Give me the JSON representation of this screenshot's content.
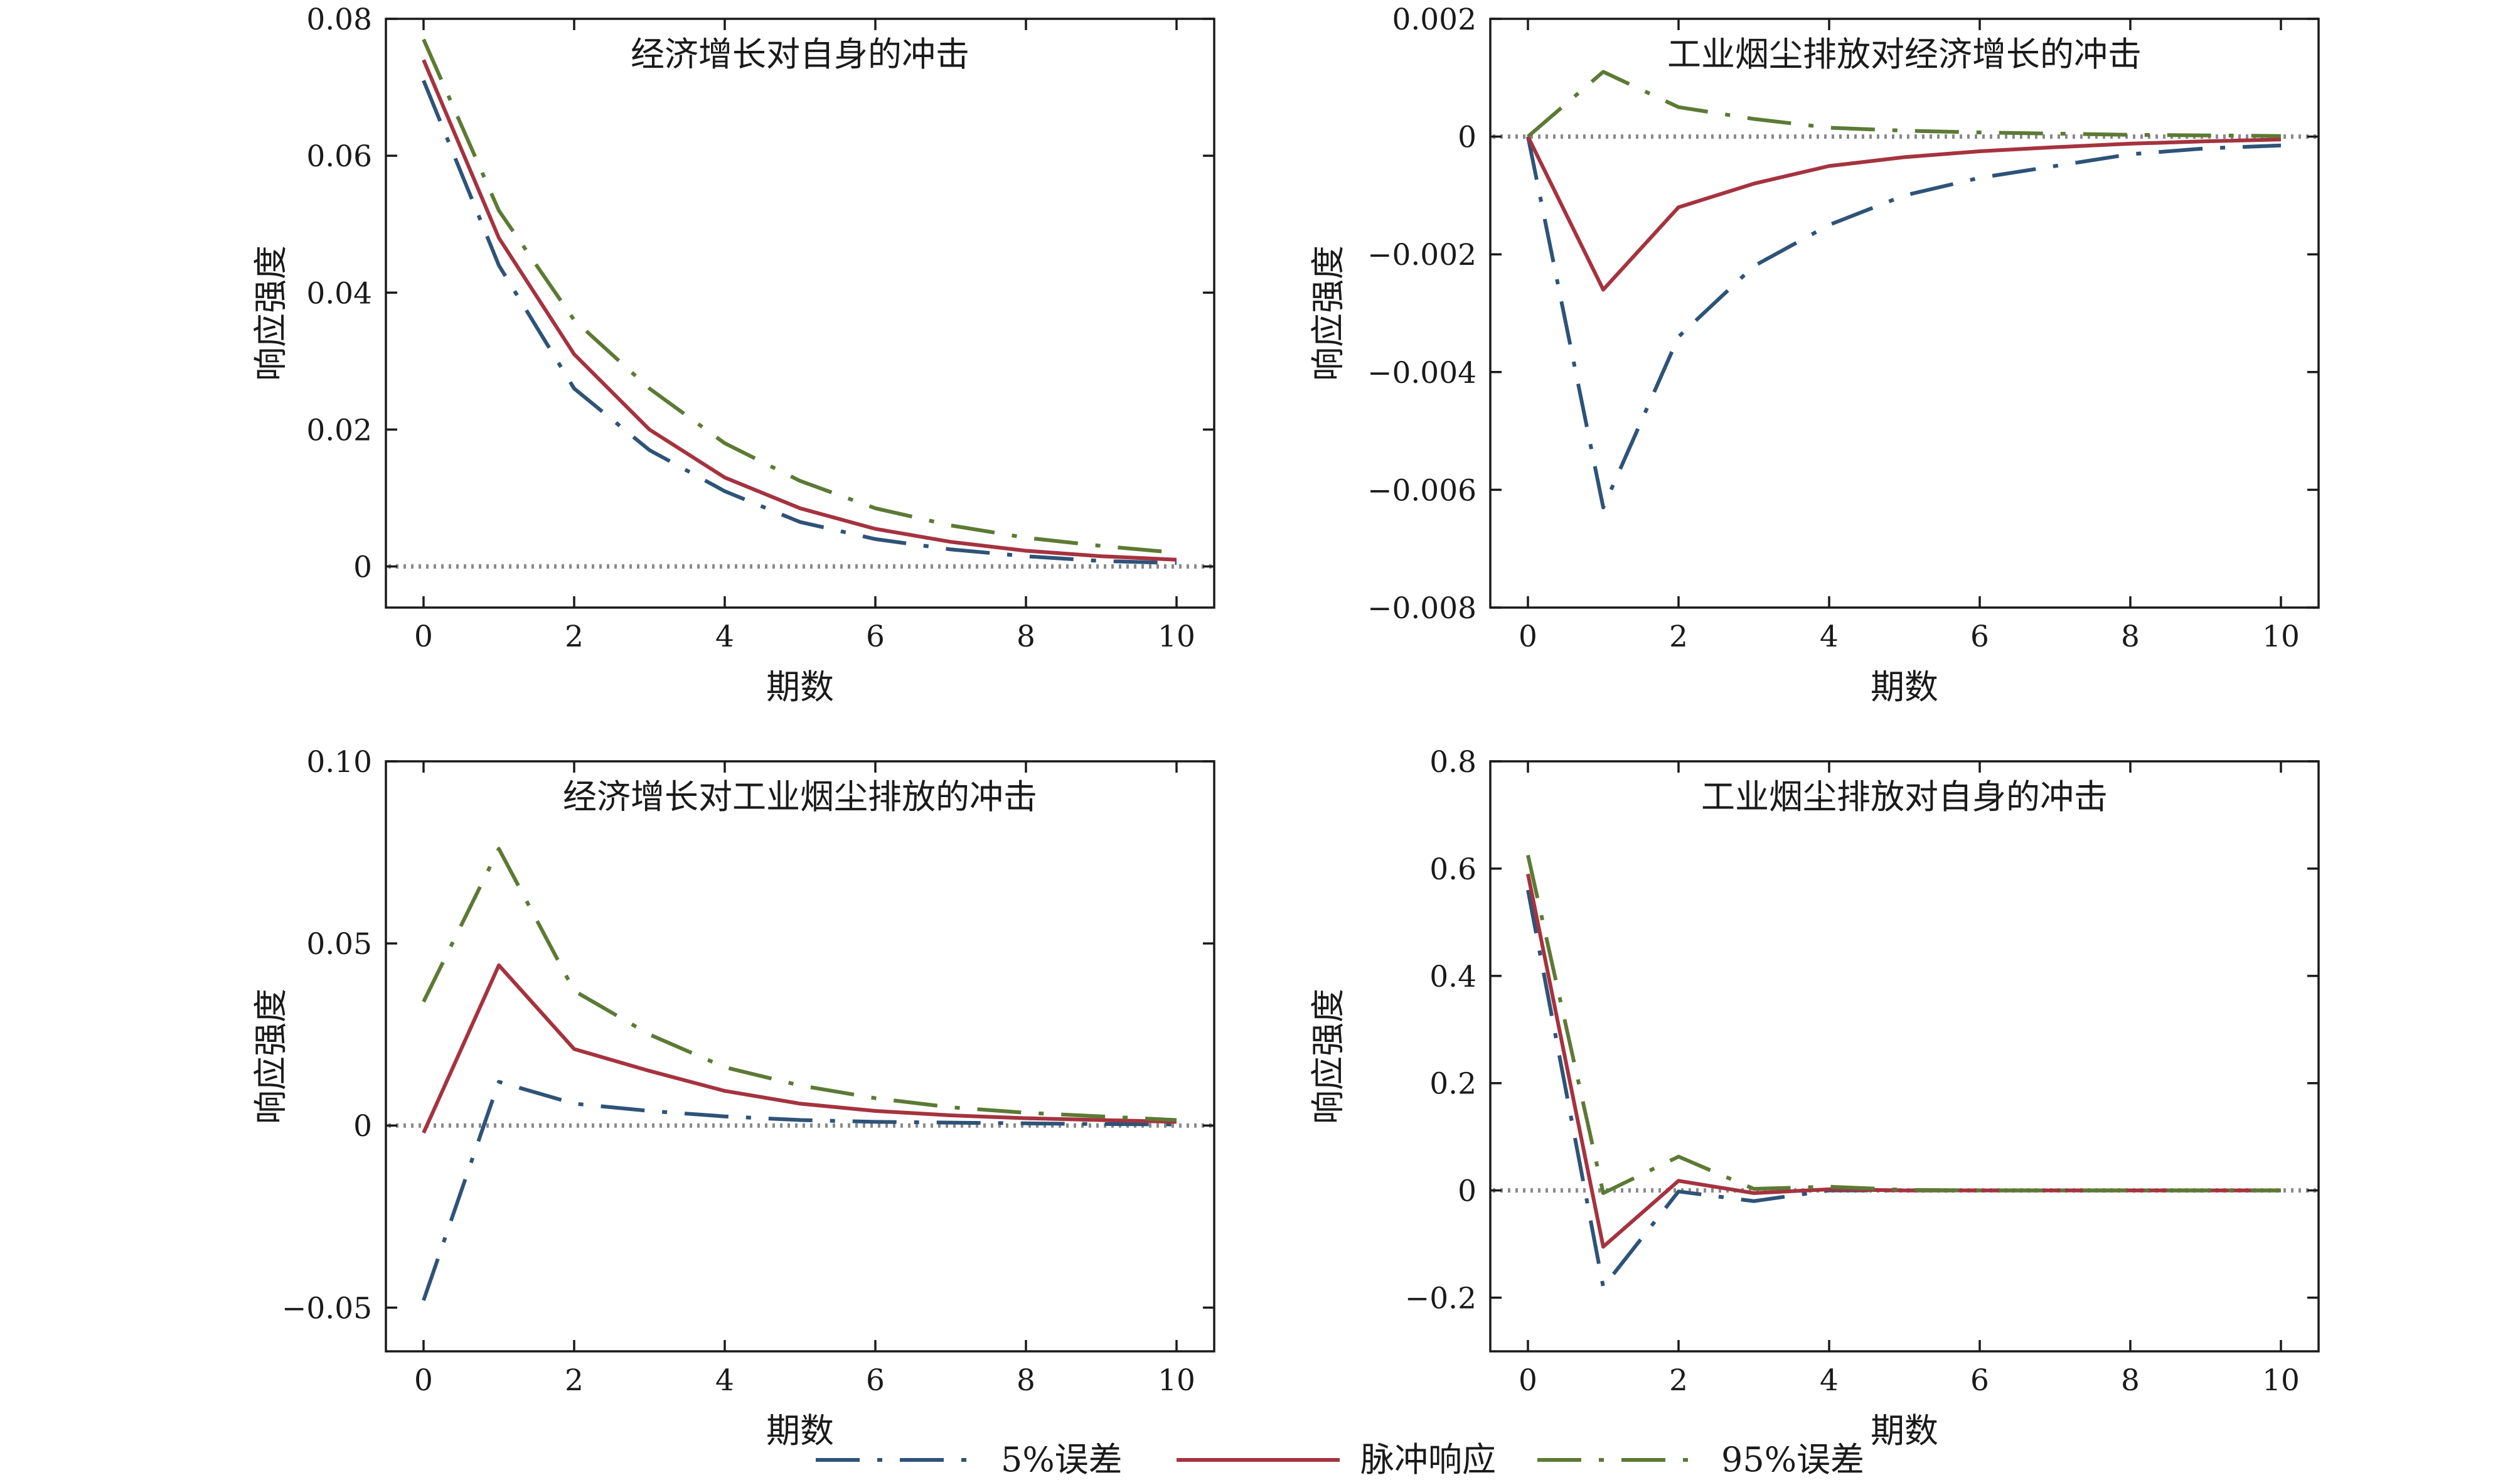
{
  "colors": {
    "p5": "#2e5378",
    "impulse": "#a5333f",
    "p95": "#5c7a34",
    "zero_line": "#8a8a8a",
    "axis": "#1a1a1a"
  },
  "series_styles": [
    {
      "key": "p5",
      "color": "#2e5378",
      "dash": "70 28 8 28"
    },
    {
      "key": "impulse",
      "color": "#a5333f",
      "dash": ""
    },
    {
      "key": "p95",
      "color": "#5c7a34",
      "dash": "70 28 8 28"
    }
  ],
  "legend": {
    "p5": "5%误差",
    "impulse": "脉冲响应",
    "p95": "95%误差"
  },
  "chart_data": [
    {
      "type": "line",
      "title": "经济增长对自身的冲击",
      "xlabel": "期数",
      "ylabel": "响应强度",
      "xlim": [
        -0.5,
        10.5
      ],
      "ylim": [
        -0.006,
        0.08
      ],
      "xticks": [
        0,
        2,
        4,
        6,
        8,
        10
      ],
      "xtick_labels": [
        "0",
        "2",
        "4",
        "6",
        "8",
        "10"
      ],
      "yticks": [
        0,
        0.02,
        0.04,
        0.06,
        0.08
      ],
      "ytick_labels": [
        "0",
        "0.02",
        "0.04",
        "0.06",
        "0.08"
      ],
      "zero_line": 0,
      "x": [
        0,
        1,
        2,
        3,
        4,
        5,
        6,
        7,
        8,
        9,
        10
      ],
      "series": [
        {
          "key": "p5",
          "name": "5%误差",
          "values": [
            0.071,
            0.044,
            0.026,
            0.017,
            0.011,
            0.0065,
            0.004,
            0.0025,
            0.0015,
            0.0008,
            0.0005
          ]
        },
        {
          "key": "impulse",
          "name": "脉冲响应",
          "values": [
            0.074,
            0.048,
            0.031,
            0.02,
            0.013,
            0.0085,
            0.0055,
            0.0036,
            0.0023,
            0.0015,
            0.001
          ]
        },
        {
          "key": "p95",
          "name": "95%误差",
          "values": [
            0.077,
            0.052,
            0.036,
            0.026,
            0.018,
            0.0125,
            0.0085,
            0.006,
            0.0042,
            0.003,
            0.002
          ]
        }
      ]
    },
    {
      "type": "line",
      "title": "工业烟尘排放对经济增长的冲击",
      "xlabel": "期数",
      "ylabel": "响应强度",
      "xlim": [
        -0.5,
        10.5
      ],
      "ylim": [
        -0.008,
        0.002
      ],
      "xticks": [
        0,
        2,
        4,
        6,
        8,
        10
      ],
      "xtick_labels": [
        "0",
        "2",
        "4",
        "6",
        "8",
        "10"
      ],
      "yticks": [
        -0.008,
        -0.006,
        -0.004,
        -0.002,
        0,
        0.002
      ],
      "ytick_labels": [
        "−0.008",
        "−0.006",
        "−0.004",
        "−0.002",
        "0",
        "0.002"
      ],
      "zero_line": 0,
      "x": [
        0,
        1,
        2,
        3,
        4,
        5,
        6,
        7,
        8,
        9,
        10
      ],
      "series": [
        {
          "key": "p5",
          "name": "5%误差",
          "values": [
            0,
            -0.0063,
            -0.0034,
            -0.0022,
            -0.0015,
            -0.001,
            -0.0007,
            -0.0005,
            -0.0003,
            -0.0002,
            -0.00015
          ]
        },
        {
          "key": "impulse",
          "name": "脉冲响应",
          "values": [
            0,
            -0.0026,
            -0.0012,
            -0.0008,
            -0.0005,
            -0.00035,
            -0.00025,
            -0.00018,
            -0.00012,
            -8e-05,
            -5e-05
          ]
        },
        {
          "key": "p95",
          "name": "95%误差",
          "values": [
            0,
            0.0011,
            0.0005,
            0.0003,
            0.00015,
            0.0001,
            7e-05,
            5e-05,
            3e-05,
            2e-05,
            1e-05
          ]
        }
      ]
    },
    {
      "type": "line",
      "title": "经济增长对工业烟尘排放的冲击",
      "xlabel": "期数",
      "ylabel": "响应强度",
      "xlim": [
        -0.5,
        10.5
      ],
      "ylim": [
        -0.062,
        0.1
      ],
      "xticks": [
        0,
        2,
        4,
        6,
        8,
        10
      ],
      "xtick_labels": [
        "0",
        "2",
        "4",
        "6",
        "8",
        "10"
      ],
      "yticks": [
        -0.05,
        0,
        0.05,
        0.1
      ],
      "ytick_labels": [
        "−0.05",
        "0",
        "0.05",
        "0.10"
      ],
      "zero_line": 0,
      "x": [
        0,
        1,
        2,
        3,
        4,
        5,
        6,
        7,
        8,
        9,
        10
      ],
      "series": [
        {
          "key": "p5",
          "name": "5%误差",
          "values": [
            -0.048,
            0.012,
            0.006,
            0.004,
            0.0025,
            0.0015,
            0.001,
            0.0008,
            0.0006,
            0.0004,
            0.0003
          ]
        },
        {
          "key": "impulse",
          "name": "脉冲响应",
          "values": [
            -0.002,
            0.044,
            0.021,
            0.015,
            0.0095,
            0.006,
            0.004,
            0.0028,
            0.002,
            0.0015,
            0.001
          ]
        },
        {
          "key": "p95",
          "name": "95%误差",
          "values": [
            0.034,
            0.076,
            0.037,
            0.025,
            0.016,
            0.011,
            0.0075,
            0.005,
            0.0035,
            0.0025,
            0.0015
          ]
        }
      ]
    },
    {
      "type": "line",
      "title": "工业烟尘排放对自身的冲击",
      "xlabel": "期数",
      "ylabel": "响应强度",
      "xlim": [
        -0.5,
        10.5
      ],
      "ylim": [
        -0.3,
        0.8
      ],
      "xticks": [
        0,
        2,
        4,
        6,
        8,
        10
      ],
      "xtick_labels": [
        "0",
        "2",
        "4",
        "6",
        "8",
        "10"
      ],
      "yticks": [
        -0.2,
        0,
        0.2,
        0.4,
        0.6,
        0.8
      ],
      "ytick_labels": [
        "−0.2",
        "0",
        "0.2",
        "0.4",
        "0.6",
        "0.8"
      ],
      "zero_line": 0,
      "x": [
        0,
        1,
        2,
        3,
        4,
        5,
        6,
        7,
        8,
        9,
        10
      ],
      "series": [
        {
          "key": "p5",
          "name": "5%误差",
          "values": [
            0.56,
            -0.18,
            -0.002,
            -0.02,
            0,
            0,
            0,
            0,
            0,
            0,
            0
          ]
        },
        {
          "key": "impulse",
          "name": "脉冲响应",
          "values": [
            0.59,
            -0.105,
            0.018,
            -0.005,
            0.002,
            0,
            0,
            0,
            0,
            0,
            0
          ]
        },
        {
          "key": "p95",
          "name": "95%误差",
          "values": [
            0.625,
            -0.005,
            0.063,
            0.003,
            0.007,
            0.001,
            0,
            0,
            0,
            0,
            0
          ]
        }
      ]
    }
  ]
}
